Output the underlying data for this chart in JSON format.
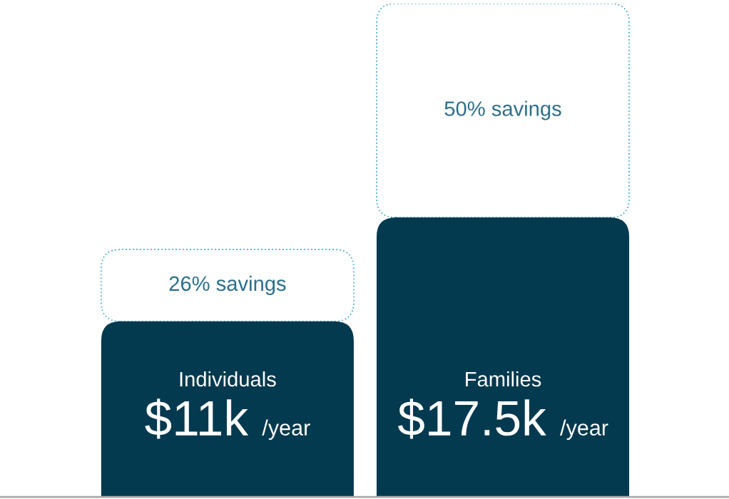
{
  "chart_data": {
    "type": "bar",
    "stacked": true,
    "categories": [
      "Individuals",
      "Families"
    ],
    "series": [
      {
        "color": "#033a4f",
        "values": [
          11,
          17.5
        ],
        "value_labels": [
          "$11k /year",
          "$17.5k /year"
        ]
      },
      {
        "color": "#29a3d6",
        "line_style": "dotted",
        "values": [
          4.5,
          13.4
        ]
      }
    ],
    "annotations": [
      "26% savings",
      "50% savings"
    ],
    "ref_lines": [
      {
        "axis": "y",
        "value": 0,
        "color": "#aaaaaa"
      }
    ]
  }
}
